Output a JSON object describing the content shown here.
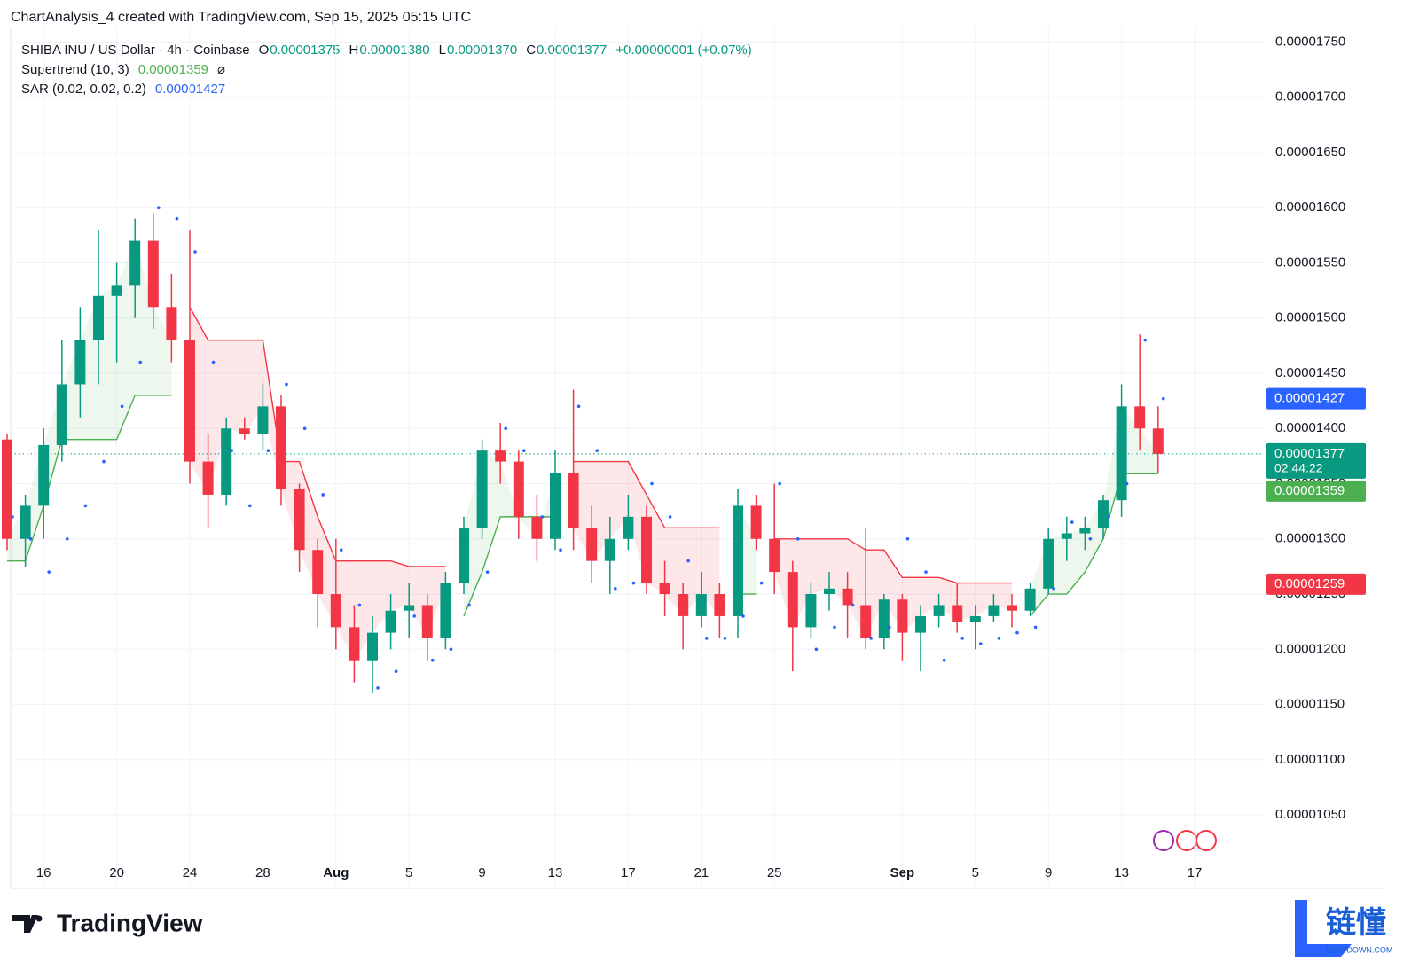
{
  "header": {
    "credit": "ChartAnalysis_4 created with TradingView.com, Sep 15, 2025 05:15 UTC"
  },
  "branding": {
    "logo": "TradingView",
    "watermark": "链懂",
    "watermark_sub": "NEATDOWN.COM"
  },
  "chart_data": {
    "type": "candlestick",
    "legend": {
      "symbol": "SHIBA INU / US Dollar · 4h · Coinbase",
      "ohlc": [
        {
          "key": "O",
          "value": "0.00001375"
        },
        {
          "key": "H",
          "value": "0.00001380"
        },
        {
          "key": "L",
          "value": "0.00001370"
        },
        {
          "key": "C",
          "value": "0.00001377"
        }
      ],
      "change": "+0.00000001 (+0.07%)",
      "supertrend": {
        "name": "Supertrend (10, 3)",
        "value": "0.00001359",
        "icon": "⌀"
      },
      "sar": {
        "name": "SAR (0.02, 0.02, 0.2)",
        "value": "0.00001427"
      }
    },
    "categories": [
      null,
      null,
      "16",
      null,
      null,
      null,
      "20",
      null,
      null,
      null,
      "24",
      null,
      null,
      null,
      "28",
      null,
      null,
      null,
      "Aug",
      null,
      null,
      null,
      "5",
      null,
      null,
      null,
      "9",
      null,
      null,
      null,
      "13",
      null,
      null,
      null,
      "17",
      null,
      null,
      null,
      "21",
      null,
      null,
      null,
      "25",
      null,
      null,
      null,
      null,
      null,
      null,
      "Sep",
      null,
      null,
      null,
      "5",
      null,
      null,
      null,
      "9",
      null,
      null,
      null,
      "13",
      null,
      null,
      null,
      "17"
    ],
    "open": [
      1.39e-05,
      1.3e-05,
      1.33e-05,
      1.385e-05,
      1.44e-05,
      1.48e-05,
      1.52e-05,
      1.53e-05,
      1.57e-05,
      1.51e-05,
      1.48e-05,
      1.37e-05,
      1.34e-05,
      1.4e-05,
      1.395e-05,
      1.42e-05,
      1.345e-05,
      1.29e-05,
      1.25e-05,
      1.22e-05,
      1.19e-05,
      1.215e-05,
      1.235e-05,
      1.24e-05,
      1.21e-05,
      1.26e-05,
      1.31e-05,
      1.38e-05,
      1.37e-05,
      1.32e-05,
      1.3e-05,
      1.36e-05,
      1.31e-05,
      1.28e-05,
      1.3e-05,
      1.32e-05,
      1.26e-05,
      1.25e-05,
      1.23e-05,
      1.25e-05,
      1.23e-05,
      1.33e-05,
      1.3e-05,
      1.27e-05,
      1.22e-05,
      1.25e-05,
      1.255e-05,
      1.24e-05,
      1.21e-05,
      1.245e-05,
      1.215e-05,
      1.23e-05,
      1.24e-05,
      1.225e-05,
      1.23e-05,
      1.24e-05,
      1.235e-05,
      1.255e-05,
      1.3e-05,
      1.305e-05,
      1.31e-05,
      1.335e-05,
      1.42e-05,
      1.4e-05,
      null,
      null
    ],
    "high": [
      1.395e-05,
      1.34e-05,
      1.4e-05,
      1.48e-05,
      1.51e-05,
      1.58e-05,
      1.55e-05,
      1.59e-05,
      1.595e-05,
      1.54e-05,
      1.58e-05,
      1.395e-05,
      1.41e-05,
      1.41e-05,
      1.44e-05,
      1.43e-05,
      1.35e-05,
      1.3e-05,
      1.3e-05,
      1.24e-05,
      1.23e-05,
      1.25e-05,
      1.26e-05,
      1.25e-05,
      1.27e-05,
      1.32e-05,
      1.39e-05,
      1.405e-05,
      1.38e-05,
      1.34e-05,
      1.38e-05,
      1.435e-05,
      1.33e-05,
      1.32e-05,
      1.34e-05,
      1.33e-05,
      1.28e-05,
      1.26e-05,
      1.27e-05,
      1.26e-05,
      1.345e-05,
      1.34e-05,
      1.35e-05,
      1.28e-05,
      1.26e-05,
      1.27e-05,
      1.27e-05,
      1.31e-05,
      1.25e-05,
      1.25e-05,
      1.24e-05,
      1.25e-05,
      1.26e-05,
      1.24e-05,
      1.25e-05,
      1.25e-05,
      1.26e-05,
      1.31e-05,
      1.32e-05,
      1.32e-05,
      1.34e-05,
      1.44e-05,
      1.485e-05,
      1.42e-05,
      null,
      null
    ],
    "low": [
      1.29e-05,
      1.275e-05,
      1.3e-05,
      1.37e-05,
      1.41e-05,
      1.44e-05,
      1.46e-05,
      1.5e-05,
      1.49e-05,
      1.46e-05,
      1.35e-05,
      1.31e-05,
      1.33e-05,
      1.39e-05,
      1.38e-05,
      1.33e-05,
      1.27e-05,
      1.22e-05,
      1.2e-05,
      1.17e-05,
      1.16e-05,
      1.2e-05,
      1.21e-05,
      1.19e-05,
      1.2e-05,
      1.25e-05,
      1.3e-05,
      1.35e-05,
      1.3e-05,
      1.28e-05,
      1.29e-05,
      1.29e-05,
      1.26e-05,
      1.25e-05,
      1.29e-05,
      1.25e-05,
      1.23e-05,
      1.2e-05,
      1.22e-05,
      1.21e-05,
      1.21e-05,
      1.29e-05,
      1.25e-05,
      1.18e-05,
      1.21e-05,
      1.235e-05,
      1.21e-05,
      1.2e-05,
      1.2e-05,
      1.19e-05,
      1.18e-05,
      1.22e-05,
      1.215e-05,
      1.2e-05,
      1.225e-05,
      1.22e-05,
      1.23e-05,
      1.25e-05,
      1.28e-05,
      1.29e-05,
      1.3e-05,
      1.32e-05,
      1.38e-05,
      1.36e-05,
      null,
      null
    ],
    "close": [
      1.3e-05,
      1.33e-05,
      1.385e-05,
      1.44e-05,
      1.48e-05,
      1.52e-05,
      1.53e-05,
      1.57e-05,
      1.51e-05,
      1.48e-05,
      1.37e-05,
      1.34e-05,
      1.4e-05,
      1.395e-05,
      1.42e-05,
      1.345e-05,
      1.29e-05,
      1.25e-05,
      1.22e-05,
      1.19e-05,
      1.215e-05,
      1.235e-05,
      1.24e-05,
      1.21e-05,
      1.26e-05,
      1.31e-05,
      1.38e-05,
      1.37e-05,
      1.32e-05,
      1.3e-05,
      1.36e-05,
      1.31e-05,
      1.28e-05,
      1.3e-05,
      1.32e-05,
      1.26e-05,
      1.25e-05,
      1.23e-05,
      1.25e-05,
      1.23e-05,
      1.33e-05,
      1.3e-05,
      1.27e-05,
      1.22e-05,
      1.25e-05,
      1.255e-05,
      1.24e-05,
      1.21e-05,
      1.245e-05,
      1.215e-05,
      1.23e-05,
      1.24e-05,
      1.225e-05,
      1.23e-05,
      1.24e-05,
      1.235e-05,
      1.255e-05,
      1.3e-05,
      1.305e-05,
      1.31e-05,
      1.335e-05,
      1.42e-05,
      1.4e-05,
      1.377e-05,
      null,
      null
    ],
    "up_color": "#089981",
    "down_color": "#f23645",
    "supertrend": {
      "up_color": "#4caf50",
      "down_color": "#f23645",
      "up_fill": "rgba(76,175,80,0.10)",
      "down_fill": "rgba(242,54,69,0.12)",
      "up_values": [
        1.28e-05,
        1.28e-05,
        1.33e-05,
        1.39e-05,
        1.39e-05,
        1.39e-05,
        1.39e-05,
        1.43e-05,
        1.43e-05,
        1.43e-05,
        null,
        null,
        null,
        null,
        null,
        null,
        null,
        null,
        null,
        null,
        null,
        null,
        null,
        null,
        null,
        1.23e-05,
        1.27e-05,
        1.32e-05,
        1.32e-05,
        1.32e-05,
        1.32e-05,
        null,
        null,
        null,
        null,
        null,
        null,
        null,
        null,
        null,
        1.25e-05,
        1.25e-05,
        null,
        null,
        null,
        null,
        null,
        null,
        null,
        null,
        null,
        null,
        null,
        null,
        null,
        null,
        1.23e-05,
        1.25e-05,
        1.25e-05,
        1.27e-05,
        1.3e-05,
        1.359e-05,
        1.359e-05,
        1.359e-05,
        null,
        null
      ],
      "down_values": [
        null,
        null,
        null,
        null,
        null,
        null,
        null,
        null,
        null,
        null,
        1.51e-05,
        1.48e-05,
        1.48e-05,
        1.48e-05,
        1.48e-05,
        1.37e-05,
        1.37e-05,
        1.32e-05,
        1.28e-05,
        1.28e-05,
        1.28e-05,
        1.28e-05,
        1.275e-05,
        1.275e-05,
        1.275e-05,
        null,
        null,
        null,
        null,
        null,
        null,
        1.37e-05,
        1.37e-05,
        1.37e-05,
        1.37e-05,
        1.34e-05,
        1.31e-05,
        1.31e-05,
        1.31e-05,
        1.31e-05,
        null,
        null,
        1.3e-05,
        1.3e-05,
        1.3e-05,
        1.3e-05,
        1.3e-05,
        1.29e-05,
        1.29e-05,
        1.265e-05,
        1.265e-05,
        1.265e-05,
        1.26e-05,
        1.26e-05,
        1.26e-05,
        1.26e-05,
        null,
        null,
        null,
        null,
        null,
        null,
        null,
        null,
        null,
        null
      ]
    },
    "sar": {
      "color": "#2962ff",
      "values": [
        1.32e-05,
        1.3e-05,
        1.27e-05,
        1.3e-05,
        1.33e-05,
        1.37e-05,
        1.42e-05,
        1.46e-05,
        1.6e-05,
        1.59e-05,
        1.56e-05,
        1.46e-05,
        1.38e-05,
        1.33e-05,
        1.38e-05,
        1.44e-05,
        1.4e-05,
        1.34e-05,
        1.29e-05,
        1.24e-05,
        1.165e-05,
        1.18e-05,
        1.23e-05,
        1.19e-05,
        1.2e-05,
        1.24e-05,
        1.27e-05,
        1.4e-05,
        1.38e-05,
        1.32e-05,
        1.29e-05,
        1.42e-05,
        1.38e-05,
        1.255e-05,
        1.26e-05,
        1.35e-05,
        1.32e-05,
        1.28e-05,
        1.21e-05,
        1.21e-05,
        1.23e-05,
        1.26e-05,
        1.35e-05,
        1.3e-05,
        1.2e-05,
        1.22e-05,
        1.24e-05,
        1.21e-05,
        1.22e-05,
        1.3e-05,
        1.27e-05,
        1.19e-05,
        1.21e-05,
        1.205e-05,
        1.21e-05,
        1.215e-05,
        1.22e-05,
        1.255e-05,
        1.315e-05,
        1.3e-05,
        1.32e-05,
        1.35e-05,
        1.48e-05,
        1.427e-05,
        null,
        null
      ]
    },
    "last_price": {
      "value": 1.377e-05,
      "color": "#089981"
    },
    "price_tags": [
      {
        "value": 1.427e-05,
        "label": "0.00001427",
        "color": "#2962ff"
      },
      {
        "value": 1.377e-05,
        "label": "0.00001377",
        "sub": "02:44:22",
        "color": "#089981"
      },
      {
        "value": 1.359e-05,
        "label": "0.00001359",
        "color": "#4caf50"
      },
      {
        "value": 1.259e-05,
        "label": "0.00001259",
        "color": "#f23645"
      }
    ],
    "ylim": [
      9.85e-06,
      1.764e-05
    ],
    "yticks": [
      {
        "value": 1.05e-05,
        "label": "0.00001050"
      },
      {
        "value": 1.1e-05,
        "label": "0.00001100"
      },
      {
        "value": 1.15e-05,
        "label": "0.00001150"
      },
      {
        "value": 1.2e-05,
        "label": "0.00001200"
      },
      {
        "value": 1.25e-05,
        "label": "0.00001250"
      },
      {
        "value": 1.3e-05,
        "label": "0.00001300"
      },
      {
        "value": 1.35e-05,
        "label": "0.00001350"
      },
      {
        "value": 1.4e-05,
        "label": "0.00001400"
      },
      {
        "value": 1.45e-05,
        "label": "0.00001450"
      },
      {
        "value": 1.5e-05,
        "label": "0.00001500"
      },
      {
        "value": 1.55e-05,
        "label": "0.00001550"
      },
      {
        "value": 1.6e-05,
        "label": "0.00001600"
      },
      {
        "value": 1.65e-05,
        "label": "0.00001650"
      },
      {
        "value": 1.7e-05,
        "label": "0.00001700"
      },
      {
        "value": 1.75e-05,
        "label": "0.00001750"
      }
    ],
    "grid": true
  }
}
